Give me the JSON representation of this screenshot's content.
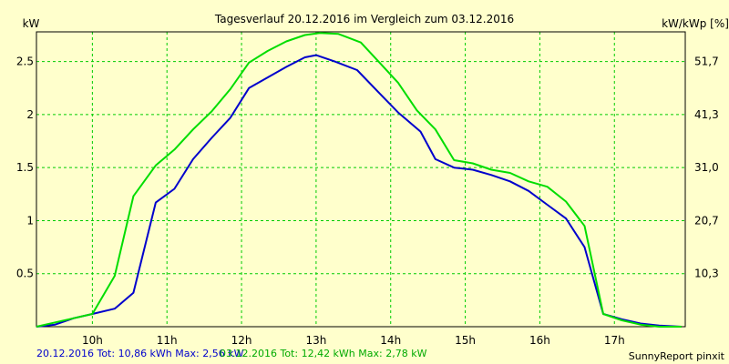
{
  "chart_data": {
    "type": "line",
    "title": "Tagesverlauf 20.12.2016 im Vergleich zum 03.12.2016",
    "ylabel_left": "kW",
    "ylabel_right": "kW/kWp [%]",
    "x_ticks": [
      "10h",
      "11h",
      "12h",
      "13h",
      "14h",
      "15h",
      "16h",
      "17h"
    ],
    "x_tick_values": [
      10,
      11,
      12,
      13,
      14,
      15,
      16,
      17
    ],
    "y_ticks_left": [
      "0.5",
      "1",
      "1.5",
      "2",
      "2.5"
    ],
    "y_tick_values_left": [
      0.5,
      1,
      1.5,
      2,
      2.5
    ],
    "y_ticks_right": [
      "10,3",
      "20,7",
      "31,0",
      "41,3",
      "51,7"
    ],
    "xlim": [
      9.25,
      17.95
    ],
    "ylim": [
      0,
      2.78
    ],
    "grid": true,
    "series": [
      {
        "name": "20.12.2016",
        "color": "#0000cc",
        "points": [
          [
            9.25,
            0
          ],
          [
            9.5,
            0.02
          ],
          [
            9.75,
            0.08
          ],
          [
            10.0,
            0.12
          ],
          [
            10.3,
            0.17
          ],
          [
            10.55,
            0.32
          ],
          [
            10.85,
            1.17
          ],
          [
            11.1,
            1.3
          ],
          [
            11.35,
            1.58
          ],
          [
            11.6,
            1.78
          ],
          [
            11.85,
            1.97
          ],
          [
            12.1,
            2.25
          ],
          [
            12.35,
            2.35
          ],
          [
            12.6,
            2.45
          ],
          [
            12.85,
            2.54
          ],
          [
            13.0,
            2.56
          ],
          [
            13.25,
            2.5
          ],
          [
            13.55,
            2.42
          ],
          [
            13.85,
            2.2
          ],
          [
            14.1,
            2.02
          ],
          [
            14.4,
            1.84
          ],
          [
            14.6,
            1.58
          ],
          [
            14.85,
            1.5
          ],
          [
            15.1,
            1.48
          ],
          [
            15.35,
            1.43
          ],
          [
            15.6,
            1.37
          ],
          [
            15.85,
            1.28
          ],
          [
            16.1,
            1.15
          ],
          [
            16.35,
            1.02
          ],
          [
            16.6,
            0.75
          ],
          [
            16.85,
            0.12
          ],
          [
            17.1,
            0.07
          ],
          [
            17.35,
            0.03
          ],
          [
            17.6,
            0.01
          ],
          [
            17.9,
            0
          ]
        ]
      },
      {
        "name": "03.12.2016",
        "color": "#00dd00",
        "points": [
          [
            9.25,
            0
          ],
          [
            9.5,
            0.04
          ],
          [
            9.75,
            0.08
          ],
          [
            10.0,
            0.12
          ],
          [
            10.3,
            0.48
          ],
          [
            10.55,
            1.23
          ],
          [
            10.85,
            1.52
          ],
          [
            11.1,
            1.67
          ],
          [
            11.35,
            1.86
          ],
          [
            11.6,
            2.03
          ],
          [
            11.85,
            2.24
          ],
          [
            12.1,
            2.49
          ],
          [
            12.35,
            2.6
          ],
          [
            12.6,
            2.69
          ],
          [
            12.85,
            2.75
          ],
          [
            13.05,
            2.77
          ],
          [
            13.3,
            2.76
          ],
          [
            13.6,
            2.68
          ],
          [
            13.85,
            2.49
          ],
          [
            14.1,
            2.3
          ],
          [
            14.35,
            2.04
          ],
          [
            14.6,
            1.86
          ],
          [
            14.85,
            1.57
          ],
          [
            15.1,
            1.54
          ],
          [
            15.35,
            1.48
          ],
          [
            15.6,
            1.45
          ],
          [
            15.85,
            1.37
          ],
          [
            16.1,
            1.32
          ],
          [
            16.35,
            1.18
          ],
          [
            16.6,
            0.95
          ],
          [
            16.85,
            0.12
          ],
          [
            17.1,
            0.06
          ],
          [
            17.35,
            0.02
          ],
          [
            17.6,
            0
          ],
          [
            17.9,
            0
          ]
        ]
      }
    ],
    "legend": {
      "blue_text": "20.12.2016 Tot: 10,86 kWh Max: 2,56 kW",
      "green_text": "03.12.2016 Tot: 12,42 kWh Max: 2,78 kW"
    },
    "credit": "SunnyReport pinxit"
  }
}
